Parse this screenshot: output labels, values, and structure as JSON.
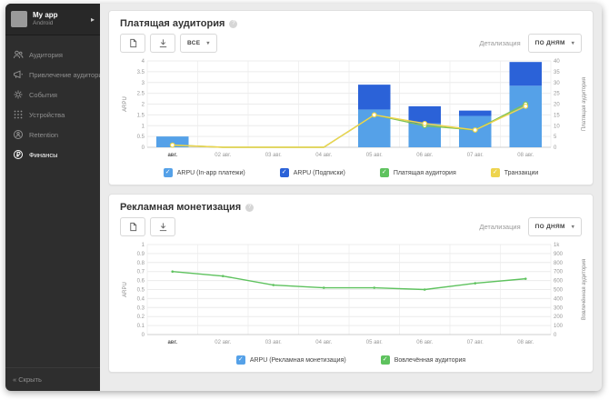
{
  "sidebar": {
    "app": {
      "name": "My app",
      "platform": "Android"
    },
    "items": [
      {
        "label": "Аудитория",
        "icon": "audience-icon",
        "active": false
      },
      {
        "label": "Привлечение аудитории",
        "icon": "megaphone-icon",
        "active": false
      },
      {
        "label": "События",
        "icon": "events-gear-icon",
        "active": false
      },
      {
        "label": "Устройства",
        "icon": "devices-grid-icon",
        "active": false
      },
      {
        "label": "Retention",
        "icon": "retention-icon",
        "active": false
      },
      {
        "label": "Финансы",
        "icon": "finance-ruble-icon",
        "active": true
      }
    ],
    "collapse_label": "Скрыть",
    "collapse_icon": "chevrons-left-icon"
  },
  "panels": [
    {
      "title": "Платящая аудитория",
      "toolbar": {
        "icons": [
          "document-icon",
          "download-icon"
        ],
        "filter_value": "ВСЕ",
        "detail_label": "Детализация",
        "detail_value": "ПО ДНЯМ"
      },
      "legend": [
        {
          "label": "ARPU (In-app платежи)",
          "color": "#55a1e8",
          "checked": true
        },
        {
          "label": "ARPU (Подписки)",
          "color": "#2b62d8",
          "checked": true
        },
        {
          "label": "Платящая аудитория",
          "color": "#5ec25e",
          "checked": true
        },
        {
          "label": "Транзакции",
          "color": "#eed44e",
          "checked": true
        }
      ]
    },
    {
      "title": "Рекламная монетизация",
      "toolbar": {
        "icons": [
          "document-icon",
          "download-icon"
        ],
        "detail_label": "Детализация",
        "detail_value": "ПО ДНЯМ"
      },
      "legend": [
        {
          "label": "ARPU (Рекламная монетизация)",
          "color": "#55a1e8",
          "checked": true
        },
        {
          "label": "Вовлечённая аудитория",
          "color": "#5ec25e",
          "checked": true
        }
      ]
    }
  ],
  "chart_data": [
    {
      "type": "bar",
      "subtype": "stacked-bar-with-lines",
      "title": "Платящая аудитория",
      "categories": [
        "авг.",
        "02 авг.",
        "03 авг.",
        "04 авг.",
        "05 авг.",
        "06 авг.",
        "07 авг.",
        "08 авг."
      ],
      "bar_series": [
        {
          "name": "ARPU (In-app платежи)",
          "color": "#55a1e8",
          "axis": "left",
          "values": [
            0.5,
            0,
            0,
            0,
            1.75,
            1.1,
            1.45,
            2.85
          ]
        },
        {
          "name": "ARPU (Подписки)",
          "color": "#2b62d8",
          "axis": "left",
          "values": [
            0,
            0,
            0,
            0,
            1.15,
            0.8,
            0.25,
            1.1
          ]
        }
      ],
      "line_series": [
        {
          "name": "Платящая аудитория",
          "color": "#7cc355",
          "axis": "right",
          "marker": "circle",
          "values": [
            1,
            0,
            0,
            0,
            15,
            10,
            8,
            20
          ]
        },
        {
          "name": "Транзакции",
          "color": "#eed44e",
          "axis": "right",
          "marker": "circle",
          "values": [
            1,
            0,
            0,
            0,
            15,
            11,
            8,
            19
          ]
        }
      ],
      "left_axis": {
        "label": "ARPU",
        "min": 0,
        "max": 4,
        "step": 0.5
      },
      "right_axis": {
        "label": "Платящая аудитория",
        "min": 0,
        "max": 40,
        "step": 5
      },
      "grid": true,
      "legend_position": "bottom"
    },
    {
      "type": "line",
      "title": "Рекламная монетизация",
      "categories": [
        "авг.",
        "02 авг.",
        "03 авг.",
        "04 авг.",
        "05 авг.",
        "06 авг.",
        "07 авг.",
        "08 авг."
      ],
      "line_series": [
        {
          "name": "Вовлечённая аудитория",
          "color": "#5ec25e",
          "axis": "right",
          "marker": "dot",
          "values": [
            700,
            650,
            550,
            520,
            520,
            500,
            570,
            620
          ]
        }
      ],
      "left_axis": {
        "label": "ARPU",
        "min": 0,
        "max": 1,
        "step": 0.1
      },
      "right_axis": {
        "label": "Вовлечённая аудитория",
        "min": 0,
        "max": 1000,
        "step": 100
      },
      "grid": true,
      "legend_position": "bottom"
    }
  ]
}
